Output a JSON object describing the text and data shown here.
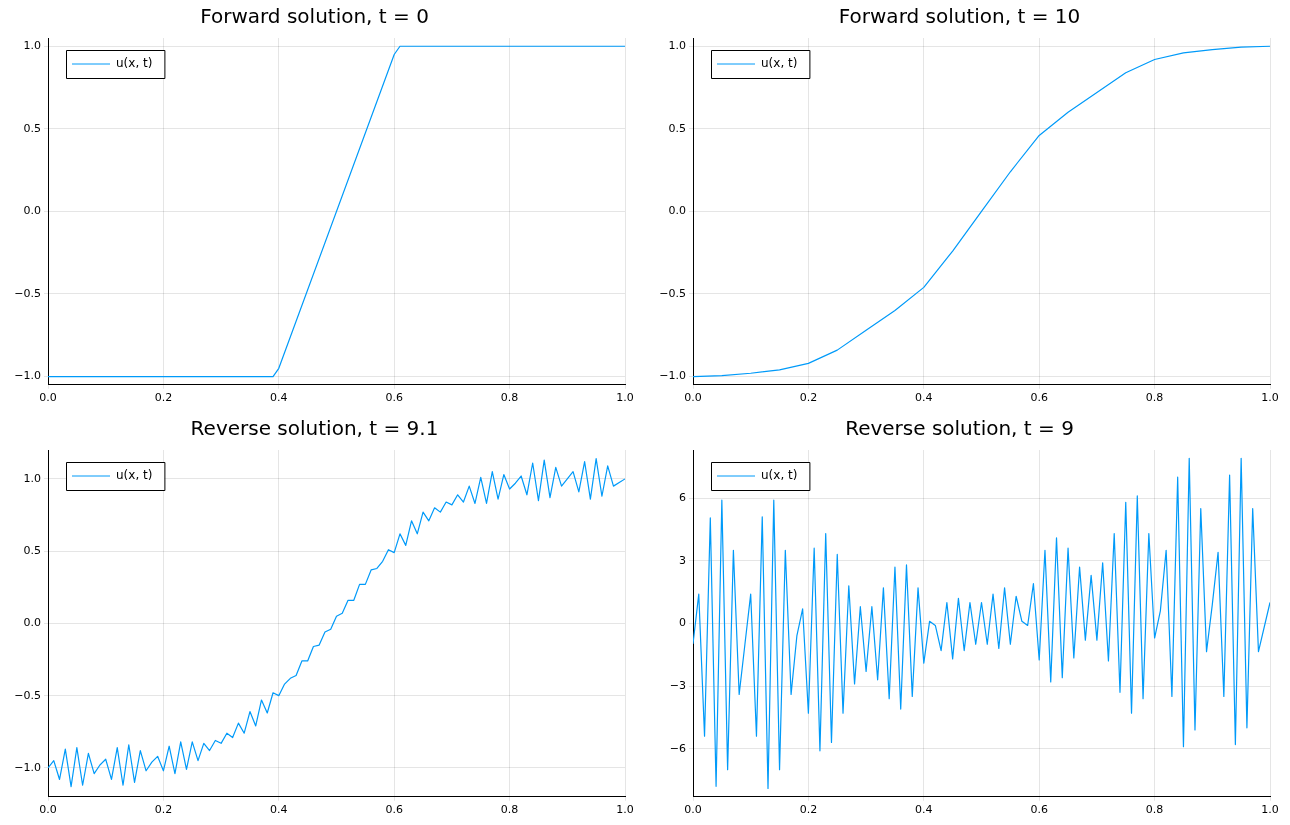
{
  "chart_data": [
    {
      "type": "line",
      "title": "Forward solution, t = 0",
      "legend": "top left",
      "grid": true,
      "marker": "none",
      "line_style": "solid",
      "xlim": [
        0,
        1
      ],
      "xticks": [
        {
          "value": 0,
          "label": "0.0"
        },
        {
          "value": 0.2,
          "label": "0.2"
        },
        {
          "value": 0.4,
          "label": "0.4"
        },
        {
          "value": 0.6,
          "label": "0.6"
        },
        {
          "value": 0.8,
          "label": "0.8"
        },
        {
          "value": 1,
          "label": "1.0"
        }
      ],
      "ylim": [
        -1.05,
        1.05
      ],
      "yticks": [
        {
          "value": -1,
          "label": "−1.0"
        },
        {
          "value": -0.5,
          "label": "−0.5"
        },
        {
          "value": 0,
          "label": "0.0"
        },
        {
          "value": 0.5,
          "label": "0.5"
        },
        {
          "value": 1,
          "label": "1.0"
        }
      ],
      "series": [
        {
          "name": "u(x, t)",
          "color": "#009af9",
          "x": [
            0,
            0.39,
            0.4,
            0.6,
            0.61,
            1
          ],
          "values": [
            -1,
            -1,
            -0.95,
            0.95,
            1,
            1
          ]
        }
      ]
    },
    {
      "type": "line",
      "title": "Forward solution, t = 10",
      "legend": "top left",
      "grid": true,
      "marker": "none",
      "line_style": "solid",
      "xlim": [
        0,
        1
      ],
      "xticks": [
        {
          "value": 0,
          "label": "0.0"
        },
        {
          "value": 0.2,
          "label": "0.2"
        },
        {
          "value": 0.4,
          "label": "0.4"
        },
        {
          "value": 0.6,
          "label": "0.6"
        },
        {
          "value": 0.8,
          "label": "0.8"
        },
        {
          "value": 1,
          "label": "1.0"
        }
      ],
      "ylim": [
        -1.05,
        1.05
      ],
      "yticks": [
        {
          "value": -1,
          "label": "−1.0"
        },
        {
          "value": -0.5,
          "label": "−0.5"
        },
        {
          "value": 0,
          "label": "0.0"
        },
        {
          "value": 0.5,
          "label": "0.5"
        },
        {
          "value": 1,
          "label": "1.0"
        }
      ],
      "series": [
        {
          "name": "u(x, t)",
          "color": "#009af9",
          "x": [
            0,
            0.05,
            0.1,
            0.15,
            0.2,
            0.25,
            0.3,
            0.35,
            0.4,
            0.45,
            0.5,
            0.55,
            0.6,
            0.65,
            0.7,
            0.75,
            0.8,
            0.85,
            0.9,
            0.95,
            1
          ],
          "values": [
            -1,
            -0.995,
            -0.98,
            -0.96,
            -0.92,
            -0.84,
            -0.72,
            -0.6,
            -0.46,
            -0.24,
            0,
            0.24,
            0.46,
            0.6,
            0.72,
            0.84,
            0.92,
            0.96,
            0.98,
            0.995,
            1
          ]
        }
      ]
    },
    {
      "type": "line",
      "title": "Reverse solution, t = 9.1",
      "legend": "top left",
      "grid": true,
      "marker": "none",
      "line_style": "solid",
      "xlim": [
        0,
        1
      ],
      "xticks": [
        {
          "value": 0,
          "label": "0.0"
        },
        {
          "value": 0.2,
          "label": "0.2"
        },
        {
          "value": 0.4,
          "label": "0.4"
        },
        {
          "value": 0.6,
          "label": "0.6"
        },
        {
          "value": 0.8,
          "label": "0.8"
        },
        {
          "value": 1,
          "label": "1.0"
        }
      ],
      "ylim": [
        -1.2,
        1.2
      ],
      "yticks": [
        {
          "value": -1,
          "label": "−1.0"
        },
        {
          "value": -0.5,
          "label": "−0.5"
        },
        {
          "value": 0,
          "label": "0.0"
        },
        {
          "value": 0.5,
          "label": "0.5"
        },
        {
          "value": 1,
          "label": "1.0"
        }
      ],
      "series": [
        {
          "name": "u(x, t)",
          "color": "#009af9",
          "x": [
            0,
            0.01,
            0.02,
            0.03,
            0.04,
            0.05,
            0.06,
            0.07,
            0.08,
            0.09,
            0.1,
            0.11,
            0.12,
            0.13,
            0.14,
            0.15,
            0.16,
            0.17,
            0.18,
            0.19,
            0.2,
            0.21,
            0.22,
            0.23,
            0.24,
            0.25,
            0.26,
            0.27,
            0.28,
            0.29,
            0.3,
            0.31,
            0.32,
            0.33,
            0.34,
            0.35,
            0.36,
            0.37,
            0.38,
            0.39,
            0.4,
            0.41,
            0.42,
            0.43,
            0.44,
            0.45,
            0.46,
            0.47,
            0.48,
            0.49,
            0.5,
            0.51,
            0.52,
            0.53,
            0.54,
            0.55,
            0.56,
            0.57,
            0.58,
            0.59,
            0.6,
            0.61,
            0.62,
            0.63,
            0.64,
            0.65,
            0.66,
            0.67,
            0.68,
            0.69,
            0.7,
            0.71,
            0.72,
            0.73,
            0.74,
            0.75,
            0.76,
            0.77,
            0.78,
            0.79,
            0.8,
            0.81,
            0.82,
            0.83,
            0.84,
            0.85,
            0.86,
            0.87,
            0.88,
            0.89,
            0.9,
            0.91,
            0.92,
            0.93,
            0.94,
            0.95,
            0.96,
            0.97,
            0.98,
            1
          ],
          "values": [
            -1,
            -0.95,
            -1.08,
            -0.87,
            -1.13,
            -0.86,
            -1.12,
            -0.9,
            -1.04,
            -0.98,
            -0.94,
            -1.08,
            -0.86,
            -1.12,
            -0.84,
            -1.1,
            -0.88,
            -1.02,
            -0.96,
            -0.92,
            -1.02,
            -0.85,
            -1.04,
            -0.82,
            -1.01,
            -0.82,
            -0.95,
            -0.83,
            -0.88,
            -0.81,
            -0.83,
            -0.76,
            -0.79,
            -0.69,
            -0.76,
            -0.61,
            -0.71,
            -0.53,
            -0.62,
            -0.48,
            -0.5,
            -0.42,
            -0.38,
            -0.36,
            -0.26,
            -0.26,
            -0.16,
            -0.15,
            -0.06,
            -0.04,
            0.05,
            0.07,
            0.16,
            0.16,
            0.27,
            0.27,
            0.37,
            0.38,
            0.43,
            0.51,
            0.49,
            0.62,
            0.54,
            0.71,
            0.62,
            0.77,
            0.71,
            0.8,
            0.77,
            0.84,
            0.82,
            0.89,
            0.84,
            0.95,
            0.83,
            1.01,
            0.83,
            1.05,
            0.86,
            1.03,
            0.93,
            0.97,
            1.02,
            0.89,
            1.11,
            0.85,
            1.13,
            0.87,
            1.08,
            0.95,
            1,
            1.05,
            0.91,
            1.12,
            0.86,
            1.14,
            0.88,
            1.09,
            0.95,
            1
          ]
        }
      ]
    },
    {
      "type": "line",
      "title": "Reverse solution, t = 9",
      "legend": "top left",
      "grid": true,
      "marker": "none",
      "line_style": "solid",
      "xlim": [
        0,
        1
      ],
      "xticks": [
        {
          "value": 0,
          "label": "0.0"
        },
        {
          "value": 0.2,
          "label": "0.2"
        },
        {
          "value": 0.4,
          "label": "0.4"
        },
        {
          "value": 0.6,
          "label": "0.6"
        },
        {
          "value": 0.8,
          "label": "0.8"
        },
        {
          "value": 1,
          "label": "1.0"
        }
      ],
      "ylim": [
        -8.3,
        8.3
      ],
      "yticks": [
        {
          "value": -6,
          "label": "−6"
        },
        {
          "value": -3,
          "label": "−3"
        },
        0,
        3,
        6
      ],
      "series": [
        {
          "name": "u(x, t)",
          "color": "#009af9",
          "x": [
            0,
            0.01,
            0.02,
            0.03,
            0.04,
            0.05,
            0.06,
            0.07,
            0.08,
            0.09,
            0.1,
            0.11,
            0.12,
            0.13,
            0.14,
            0.15,
            0.16,
            0.17,
            0.18,
            0.19,
            0.2,
            0.21,
            0.22,
            0.23,
            0.24,
            0.25,
            0.26,
            0.27,
            0.28,
            0.29,
            0.3,
            0.31,
            0.32,
            0.33,
            0.34,
            0.35,
            0.36,
            0.37,
            0.38,
            0.39,
            0.4,
            0.41,
            0.42,
            0.43,
            0.44,
            0.45,
            0.46,
            0.47,
            0.48,
            0.49,
            0.5,
            0.51,
            0.52,
            0.53,
            0.54,
            0.55,
            0.56,
            0.57,
            0.58,
            0.59,
            0.6,
            0.61,
            0.62,
            0.63,
            0.64,
            0.65,
            0.66,
            0.67,
            0.68,
            0.69,
            0.7,
            0.71,
            0.72,
            0.73,
            0.74,
            0.75,
            0.76,
            0.77,
            0.78,
            0.79,
            0.8,
            0.81,
            0.82,
            0.83,
            0.84,
            0.85,
            0.86,
            0.87,
            0.88,
            0.89,
            0.9,
            0.91,
            0.92,
            0.93,
            0.94,
            0.95,
            0.96,
            0.97,
            0.98,
            1
          ],
          "values": [
            -0.98,
            1.4,
            -5.4,
            5.05,
            -7.8,
            5.9,
            -7,
            3.5,
            -3.4,
            -1,
            1.4,
            -5.4,
            5.1,
            -7.9,
            5.9,
            -7,
            3.5,
            -3.4,
            -0.6,
            0.7,
            -4.3,
            3.6,
            -6.1,
            4.3,
            -5.7,
            3.3,
            -4.3,
            1.8,
            -2.9,
            0.8,
            -2.3,
            0.8,
            -2.7,
            1.7,
            -3.6,
            2.7,
            -4.1,
            2.8,
            -3.5,
            1.7,
            -1.9,
            0.1,
            -0.1,
            -1.3,
            1,
            -1.7,
            1.2,
            -1.3,
            1,
            -1,
            1,
            -1,
            1.4,
            -1.2,
            1.7,
            -1,
            1.3,
            0.1,
            -0.1,
            1.9,
            -1.75,
            3.5,
            -2.8,
            4.1,
            -2.6,
            3.6,
            -1.65,
            2.7,
            -0.8,
            2.3,
            -0.8,
            2.9,
            -1.8,
            4.3,
            -3.3,
            5.8,
            -4.3,
            6.1,
            -3.6,
            4.3,
            -0.7,
            0.6,
            3.5,
            -3.5,
            7,
            -5.9,
            7.9,
            -5.1,
            5.5,
            -1.35,
            0.9,
            3.4,
            -3.5,
            7.1,
            -5.8,
            7.9,
            -5,
            5.5,
            -1.35,
            1
          ]
        }
      ]
    }
  ]
}
